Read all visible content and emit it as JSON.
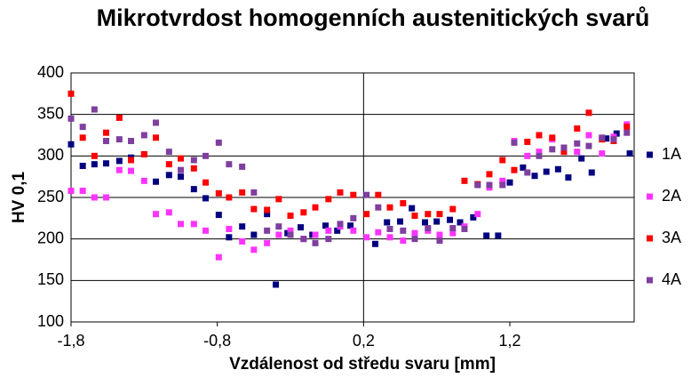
{
  "chart_data": {
    "type": "scatter",
    "title": "Mikrotvrdost homogenních austenitických svarů",
    "xlabel": "Vzdálenost od středu svaru [mm]",
    "ylabel": "HV 0,1",
    "xlim": [
      -1.8,
      2.05
    ],
    "xticks": [
      {
        "value": -1.8,
        "label": "-1,8"
      },
      {
        "value": -0.8,
        "label": "-0,8"
      },
      {
        "value": 0.2,
        "label": "0,2"
      },
      {
        "value": 1.2,
        "label": "1,2"
      }
    ],
    "ylim": [
      100,
      400
    ],
    "yticks": [
      100,
      150,
      200,
      250,
      300,
      350,
      400
    ],
    "grid": true,
    "x_reference_line": 0.2,
    "legend": "right",
    "series": [
      {
        "name": "1A",
        "color": "#000080",
        "x": [
          -1.8,
          -1.72,
          -1.64,
          -1.56,
          -1.47,
          -1.39,
          -1.3,
          -1.22,
          -1.13,
          -1.05,
          -0.96,
          -0.88,
          -0.79,
          -0.72,
          -0.63,
          -0.55,
          -0.46,
          -0.4,
          -0.32,
          -0.23,
          -0.15,
          -0.06,
          0.02,
          0.11,
          0.28,
          0.36,
          0.45,
          0.53,
          0.62,
          0.7,
          0.79,
          0.86,
          0.95,
          1.04,
          1.12,
          1.2,
          1.29,
          1.37,
          1.45,
          1.53,
          1.6,
          1.69,
          1.76,
          1.86,
          1.93,
          2.02
        ],
        "values": [
          314,
          288,
          290,
          291,
          294,
          298,
          302,
          269,
          277,
          275,
          260,
          249,
          229,
          202,
          215,
          205,
          230,
          145,
          207,
          214,
          205,
          216,
          210,
          216,
          194,
          220,
          221,
          237,
          220,
          221,
          223,
          220,
          226,
          204,
          204,
          268,
          286,
          276,
          281,
          284,
          274,
          297,
          280,
          321,
          327,
          303
        ]
      },
      {
        "name": "2A",
        "color": "#ff33ff",
        "x": [
          -1.8,
          -1.72,
          -1.64,
          -1.56,
          -1.47,
          -1.39,
          -1.3,
          -1.22,
          -1.13,
          -1.05,
          -0.96,
          -0.88,
          -0.79,
          -0.72,
          -0.63,
          -0.55,
          -0.46,
          -0.38,
          -0.3,
          -0.21,
          -0.13,
          -0.04,
          0.04,
          0.13,
          0.22,
          0.3,
          0.38,
          0.47,
          0.55,
          0.64,
          0.72,
          0.81,
          0.89,
          0.98,
          1.06,
          1.15,
          1.23,
          1.32,
          1.4,
          1.49,
          1.57,
          1.66,
          1.74,
          1.83,
          1.91,
          2.0
        ],
        "values": [
          258,
          258,
          250,
          250,
          283,
          282,
          270,
          230,
          232,
          218,
          218,
          210,
          178,
          212,
          197,
          187,
          195,
          205,
          210,
          200,
          205,
          210,
          215,
          210,
          202,
          208,
          202,
          198,
          207,
          210,
          205,
          207,
          215,
          230,
          262,
          270,
          318,
          300,
          305,
          320,
          310,
          305,
          325,
          303,
          323,
          338
        ]
      },
      {
        "name": "3A",
        "color": "#ff0000",
        "x": [
          -1.8,
          -1.72,
          -1.64,
          -1.56,
          -1.47,
          -1.39,
          -1.3,
          -1.22,
          -1.13,
          -1.05,
          -0.96,
          -0.88,
          -0.79,
          -0.72,
          -0.63,
          -0.55,
          -0.46,
          -0.38,
          -0.3,
          -0.21,
          -0.13,
          -0.04,
          0.04,
          0.13,
          0.22,
          0.3,
          0.38,
          0.47,
          0.55,
          0.64,
          0.72,
          0.81,
          0.89,
          0.98,
          1.06,
          1.15,
          1.23,
          1.32,
          1.4,
          1.49,
          1.57,
          1.66,
          1.74,
          1.83,
          1.91,
          2.0
        ],
        "values": [
          375,
          322,
          300,
          328,
          346,
          295,
          302,
          322,
          290,
          297,
          285,
          268,
          255,
          250,
          256,
          236,
          235,
          248,
          228,
          232,
          238,
          248,
          256,
          253,
          230,
          253,
          238,
          243,
          228,
          230,
          230,
          236,
          270,
          266,
          278,
          295,
          283,
          317,
          325,
          322,
          305,
          333,
          352,
          320,
          318,
          335
        ]
      },
      {
        "name": "4A",
        "color": "#7f3f9f",
        "x": [
          -1.8,
          -1.72,
          -1.64,
          -1.56,
          -1.47,
          -1.39,
          -1.3,
          -1.22,
          -1.13,
          -1.05,
          -0.96,
          -0.88,
          -0.79,
          -0.72,
          -0.63,
          -0.55,
          -0.46,
          -0.38,
          -0.3,
          -0.21,
          -0.13,
          -0.04,
          0.04,
          0.13,
          0.22,
          0.3,
          0.38,
          0.47,
          0.55,
          0.64,
          0.72,
          0.81,
          0.89,
          0.98,
          1.06,
          1.15,
          1.23,
          1.32,
          1.4,
          1.49,
          1.57,
          1.66,
          1.74,
          1.83,
          1.91,
          2.0
        ],
        "values": [
          345,
          335,
          356,
          318,
          320,
          318,
          325,
          340,
          305,
          283,
          295,
          300,
          316,
          290,
          287,
          256,
          210,
          215,
          205,
          200,
          195,
          200,
          218,
          225,
          253,
          238,
          212,
          210,
          200,
          213,
          198,
          213,
          212,
          265,
          265,
          265,
          316,
          280,
          300,
          308,
          310,
          315,
          312,
          322,
          320,
          328
        ]
      }
    ]
  }
}
